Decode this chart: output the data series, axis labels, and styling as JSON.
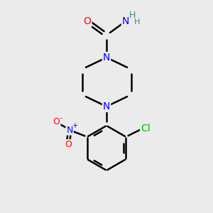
{
  "bg_color": "#ebebeb",
  "bond_color": "#000000",
  "bond_width": 1.8,
  "atom_colors": {
    "N": "#0000ff",
    "O": "#ff0000",
    "Cl": "#00bb00",
    "H": "#4a8080",
    "C": "#000000"
  },
  "font_size_atom": 10,
  "font_size_h": 9,
  "font_size_charge": 7,
  "scale": 1.0
}
